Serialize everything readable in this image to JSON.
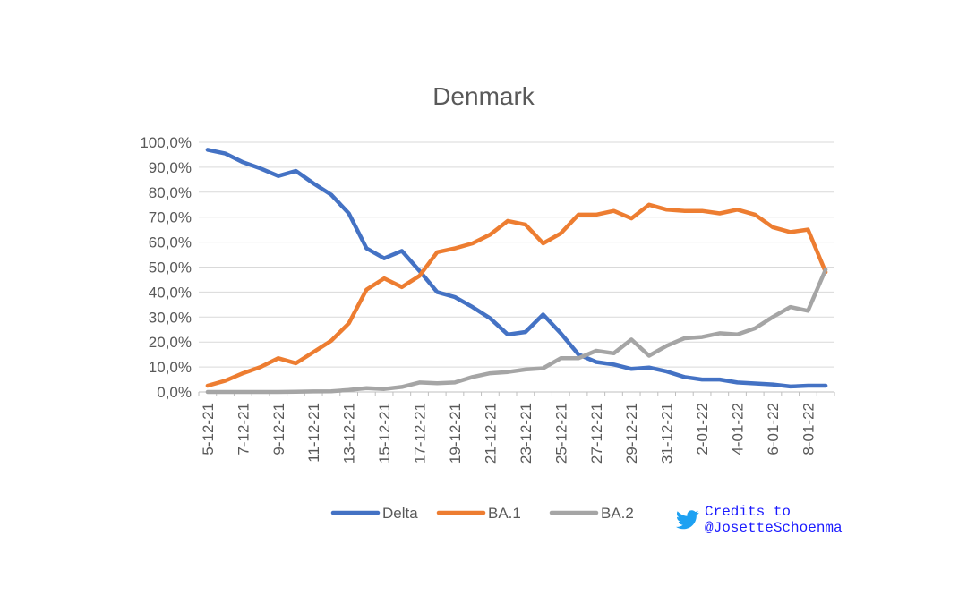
{
  "chart_data": {
    "type": "line",
    "title": "Denmark",
    "ylim": [
      0,
      100
    ],
    "yticks": [
      "0,0%",
      "10,0%",
      "20,0%",
      "30,0%",
      "40,0%",
      "50,0%",
      "60,0%",
      "70,0%",
      "80,0%",
      "90,0%",
      "100,0%"
    ],
    "ytick_values": [
      0,
      10,
      20,
      30,
      40,
      50,
      60,
      70,
      80,
      90,
      100
    ],
    "x": [
      "5-12-21",
      "6-12-21",
      "7-12-21",
      "8-12-21",
      "9-12-21",
      "10-12-21",
      "11-12-21",
      "12-12-21",
      "13-12-21",
      "14-12-21",
      "15-12-21",
      "16-12-21",
      "17-12-21",
      "18-12-21",
      "19-12-21",
      "20-12-21",
      "21-12-21",
      "22-12-21",
      "23-12-21",
      "24-12-21",
      "25-12-21",
      "26-12-21",
      "27-12-21",
      "28-12-21",
      "29-12-21",
      "30-12-21",
      "31-12-21",
      "1-01-22",
      "2-01-22",
      "3-01-22",
      "4-01-22",
      "5-01-22",
      "6-01-22",
      "7-01-22",
      "8-01-22",
      "9-01-22"
    ],
    "xtick_labels": [
      "5-12-21",
      "7-12-21",
      "9-12-21",
      "11-12-21",
      "13-12-21",
      "15-12-21",
      "17-12-21",
      "19-12-21",
      "21-12-21",
      "23-12-21",
      "25-12-21",
      "27-12-21",
      "29-12-21",
      "31-12-21",
      "2-01-22",
      "4-01-22",
      "6-01-22",
      "8-01-22"
    ],
    "series": [
      {
        "name": "Delta",
        "color": "#4472C4",
        "values": [
          97,
          95.5,
          92,
          89.5,
          86.5,
          88.5,
          83.5,
          79,
          71.5,
          57.5,
          53.5,
          56.5,
          48.5,
          40,
          38,
          34,
          29.5,
          23,
          24,
          31,
          23.5,
          15,
          12,
          11,
          9.2,
          9.8,
          8.2,
          6,
          5,
          5,
          3.8,
          3.4,
          3,
          2.2,
          2.5,
          2.5
        ]
      },
      {
        "name": "BA.1",
        "color": "#ED7D31",
        "values": [
          2.5,
          4.5,
          7.5,
          10,
          13.5,
          11.5,
          16,
          20.5,
          27.5,
          41,
          45.5,
          42,
          46.5,
          56,
          57.5,
          59.5,
          63,
          68.5,
          67,
          59.5,
          63.5,
          71,
          71,
          72.5,
          69.5,
          75,
          73,
          72.5,
          72.5,
          71.5,
          73,
          71,
          66,
          64,
          65,
          48
        ]
      },
      {
        "name": "BA.2",
        "color": "#A5A5A5",
        "values": [
          0,
          0,
          0,
          0,
          0,
          0.1,
          0.2,
          0.3,
          0.8,
          1.5,
          1.2,
          2,
          3.8,
          3.5,
          3.8,
          6,
          7.5,
          8,
          9,
          9.5,
          13.5,
          13.5,
          16.5,
          15.5,
          21,
          14.5,
          18.5,
          21.5,
          22,
          23.5,
          23,
          25.5,
          30,
          34,
          32.5,
          49
        ]
      }
    ],
    "legend": {
      "position": "bottom",
      "items": [
        "Delta",
        "BA.1",
        "BA.2"
      ]
    },
    "grid": true
  },
  "credits": {
    "line1": "Credits to",
    "line2": "@JosetteSchoenma",
    "icon": "twitter-bird-icon",
    "color": "#1a1aff"
  }
}
